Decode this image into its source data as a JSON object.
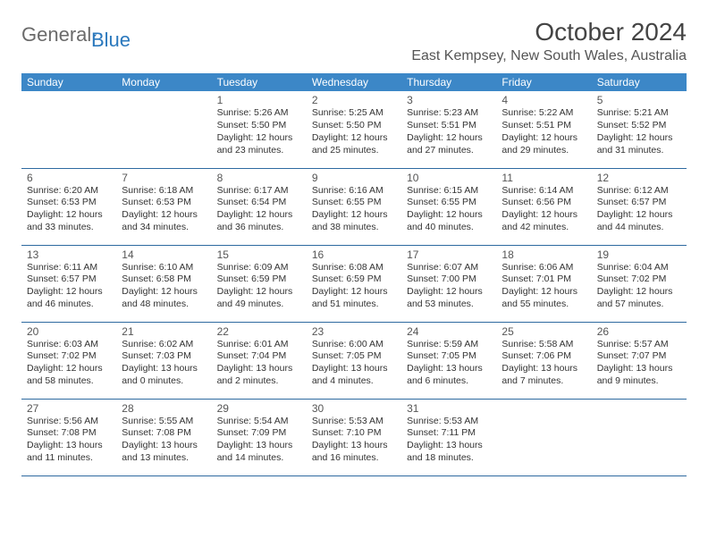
{
  "brand": {
    "part1": "General",
    "part2": "Blue"
  },
  "title": "October 2024",
  "location": "East Kempsey, New South Wales, Australia",
  "colors": {
    "header_bg": "#3c87c7",
    "header_text": "#ffffff",
    "rule": "#2e6aa0",
    "logo_blue": "#2a78bd",
    "text": "#333333"
  },
  "day_labels": [
    "Sunday",
    "Monday",
    "Tuesday",
    "Wednesday",
    "Thursday",
    "Friday",
    "Saturday"
  ],
  "weeks": [
    [
      null,
      null,
      {
        "n": "1",
        "sr": "Sunrise: 5:26 AM",
        "ss": "Sunset: 5:50 PM",
        "d1": "Daylight: 12 hours",
        "d2": "and 23 minutes."
      },
      {
        "n": "2",
        "sr": "Sunrise: 5:25 AM",
        "ss": "Sunset: 5:50 PM",
        "d1": "Daylight: 12 hours",
        "d2": "and 25 minutes."
      },
      {
        "n": "3",
        "sr": "Sunrise: 5:23 AM",
        "ss": "Sunset: 5:51 PM",
        "d1": "Daylight: 12 hours",
        "d2": "and 27 minutes."
      },
      {
        "n": "4",
        "sr": "Sunrise: 5:22 AM",
        "ss": "Sunset: 5:51 PM",
        "d1": "Daylight: 12 hours",
        "d2": "and 29 minutes."
      },
      {
        "n": "5",
        "sr": "Sunrise: 5:21 AM",
        "ss": "Sunset: 5:52 PM",
        "d1": "Daylight: 12 hours",
        "d2": "and 31 minutes."
      }
    ],
    [
      {
        "n": "6",
        "sr": "Sunrise: 6:20 AM",
        "ss": "Sunset: 6:53 PM",
        "d1": "Daylight: 12 hours",
        "d2": "and 33 minutes."
      },
      {
        "n": "7",
        "sr": "Sunrise: 6:18 AM",
        "ss": "Sunset: 6:53 PM",
        "d1": "Daylight: 12 hours",
        "d2": "and 34 minutes."
      },
      {
        "n": "8",
        "sr": "Sunrise: 6:17 AM",
        "ss": "Sunset: 6:54 PM",
        "d1": "Daylight: 12 hours",
        "d2": "and 36 minutes."
      },
      {
        "n": "9",
        "sr": "Sunrise: 6:16 AM",
        "ss": "Sunset: 6:55 PM",
        "d1": "Daylight: 12 hours",
        "d2": "and 38 minutes."
      },
      {
        "n": "10",
        "sr": "Sunrise: 6:15 AM",
        "ss": "Sunset: 6:55 PM",
        "d1": "Daylight: 12 hours",
        "d2": "and 40 minutes."
      },
      {
        "n": "11",
        "sr": "Sunrise: 6:14 AM",
        "ss": "Sunset: 6:56 PM",
        "d1": "Daylight: 12 hours",
        "d2": "and 42 minutes."
      },
      {
        "n": "12",
        "sr": "Sunrise: 6:12 AM",
        "ss": "Sunset: 6:57 PM",
        "d1": "Daylight: 12 hours",
        "d2": "and 44 minutes."
      }
    ],
    [
      {
        "n": "13",
        "sr": "Sunrise: 6:11 AM",
        "ss": "Sunset: 6:57 PM",
        "d1": "Daylight: 12 hours",
        "d2": "and 46 minutes."
      },
      {
        "n": "14",
        "sr": "Sunrise: 6:10 AM",
        "ss": "Sunset: 6:58 PM",
        "d1": "Daylight: 12 hours",
        "d2": "and 48 minutes."
      },
      {
        "n": "15",
        "sr": "Sunrise: 6:09 AM",
        "ss": "Sunset: 6:59 PM",
        "d1": "Daylight: 12 hours",
        "d2": "and 49 minutes."
      },
      {
        "n": "16",
        "sr": "Sunrise: 6:08 AM",
        "ss": "Sunset: 6:59 PM",
        "d1": "Daylight: 12 hours",
        "d2": "and 51 minutes."
      },
      {
        "n": "17",
        "sr": "Sunrise: 6:07 AM",
        "ss": "Sunset: 7:00 PM",
        "d1": "Daylight: 12 hours",
        "d2": "and 53 minutes."
      },
      {
        "n": "18",
        "sr": "Sunrise: 6:06 AM",
        "ss": "Sunset: 7:01 PM",
        "d1": "Daylight: 12 hours",
        "d2": "and 55 minutes."
      },
      {
        "n": "19",
        "sr": "Sunrise: 6:04 AM",
        "ss": "Sunset: 7:02 PM",
        "d1": "Daylight: 12 hours",
        "d2": "and 57 minutes."
      }
    ],
    [
      {
        "n": "20",
        "sr": "Sunrise: 6:03 AM",
        "ss": "Sunset: 7:02 PM",
        "d1": "Daylight: 12 hours",
        "d2": "and 58 minutes."
      },
      {
        "n": "21",
        "sr": "Sunrise: 6:02 AM",
        "ss": "Sunset: 7:03 PM",
        "d1": "Daylight: 13 hours",
        "d2": "and 0 minutes."
      },
      {
        "n": "22",
        "sr": "Sunrise: 6:01 AM",
        "ss": "Sunset: 7:04 PM",
        "d1": "Daylight: 13 hours",
        "d2": "and 2 minutes."
      },
      {
        "n": "23",
        "sr": "Sunrise: 6:00 AM",
        "ss": "Sunset: 7:05 PM",
        "d1": "Daylight: 13 hours",
        "d2": "and 4 minutes."
      },
      {
        "n": "24",
        "sr": "Sunrise: 5:59 AM",
        "ss": "Sunset: 7:05 PM",
        "d1": "Daylight: 13 hours",
        "d2": "and 6 minutes."
      },
      {
        "n": "25",
        "sr": "Sunrise: 5:58 AM",
        "ss": "Sunset: 7:06 PM",
        "d1": "Daylight: 13 hours",
        "d2": "and 7 minutes."
      },
      {
        "n": "26",
        "sr": "Sunrise: 5:57 AM",
        "ss": "Sunset: 7:07 PM",
        "d1": "Daylight: 13 hours",
        "d2": "and 9 minutes."
      }
    ],
    [
      {
        "n": "27",
        "sr": "Sunrise: 5:56 AM",
        "ss": "Sunset: 7:08 PM",
        "d1": "Daylight: 13 hours",
        "d2": "and 11 minutes."
      },
      {
        "n": "28",
        "sr": "Sunrise: 5:55 AM",
        "ss": "Sunset: 7:08 PM",
        "d1": "Daylight: 13 hours",
        "d2": "and 13 minutes."
      },
      {
        "n": "29",
        "sr": "Sunrise: 5:54 AM",
        "ss": "Sunset: 7:09 PM",
        "d1": "Daylight: 13 hours",
        "d2": "and 14 minutes."
      },
      {
        "n": "30",
        "sr": "Sunrise: 5:53 AM",
        "ss": "Sunset: 7:10 PM",
        "d1": "Daylight: 13 hours",
        "d2": "and 16 minutes."
      },
      {
        "n": "31",
        "sr": "Sunrise: 5:53 AM",
        "ss": "Sunset: 7:11 PM",
        "d1": "Daylight: 13 hours",
        "d2": "and 18 minutes."
      },
      null,
      null
    ]
  ]
}
